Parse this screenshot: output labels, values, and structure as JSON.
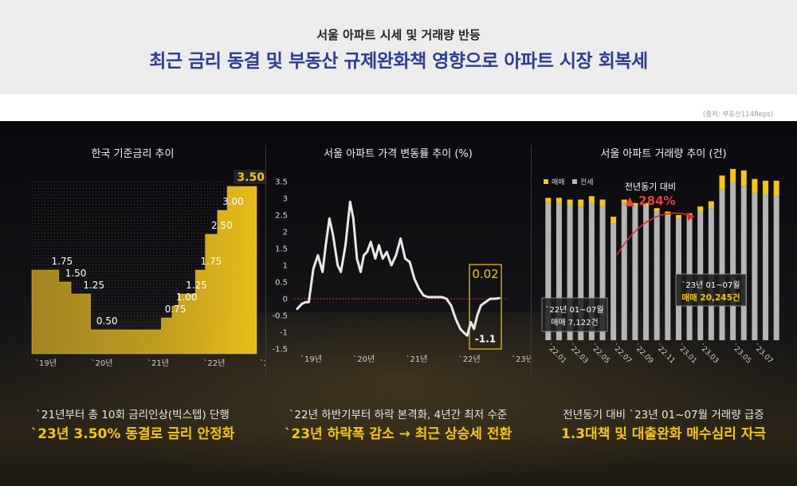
{
  "header": {
    "subtitle": "서울 아파트 시세 및 거래량 반등",
    "title": "최근 금리 동결 및 부동산 규제완화책 영향으로 아파트 시장 회복세"
  },
  "source": "(출처: 부동산114Reps)",
  "panels": [
    {
      "title": "한국 기준금리 추이",
      "caption": "`21년부터 총 10회 금리인상(빅스텝) 단행",
      "highlight": "`23년 3.50% 동결로 금리 안정화"
    },
    {
      "title": "서울 아파트 가격 변동률 추이 (%)",
      "caption": "`22년 하반기부터 하락 본격화, 4년간 최저 수준",
      "highlight": "`23년 하락폭 감소 → 최근 상승세 전환"
    },
    {
      "title": "서울 아파트 거래량 추이 (건)",
      "caption": "전년동기 대비 `23년 01~07월 거래량 급증",
      "highlight": "1.3대책 및 대출완화 매수심리 자극"
    }
  ],
  "colors": {
    "gold": "#f5c51b",
    "gray": "#b5b5b5",
    "title_blue": "#2c3d92"
  },
  "chart_data": [
    {
      "type": "area",
      "title": "한국 기준금리 추이",
      "xticks": [
        "`19년",
        "`20년",
        "`21년",
        "`22년",
        "`23년"
      ],
      "steps": [
        {
          "start": 0.0,
          "value": 1.75
        },
        {
          "start": 0.55,
          "value": 1.5
        },
        {
          "start": 0.8,
          "value": 1.25
        },
        {
          "start": 1.2,
          "value": 0.5
        },
        {
          "start": 1.42,
          "value": 0.5
        },
        {
          "start": 2.65,
          "value": 0.75
        },
        {
          "start": 2.87,
          "value": 1.0
        },
        {
          "start": 3.0,
          "value": 1.25
        },
        {
          "start": 3.35,
          "value": 1.75
        },
        {
          "start": 3.55,
          "value": 2.5
        },
        {
          "start": 3.8,
          "value": 3.0
        },
        {
          "start": 4.0,
          "value": 3.5
        },
        {
          "start": 4.6,
          "value": 3.5
        }
      ],
      "labels": [
        {
          "text": "1.75",
          "x": 0.4,
          "value": 1.75
        },
        {
          "text": "1.50",
          "x": 0.68,
          "value": 1.5
        },
        {
          "text": "1.25",
          "x": 1.05,
          "value": 1.25
        },
        {
          "text": "0.50",
          "x": 1.32,
          "value": 0.5
        },
        {
          "text": "0.75",
          "x": 2.72,
          "value": 0.75
        },
        {
          "text": "1.00",
          "x": 2.95,
          "value": 1.0
        },
        {
          "text": "1.25",
          "x": 3.15,
          "value": 1.25
        },
        {
          "text": "1.75",
          "x": 3.45,
          "value": 1.75
        },
        {
          "text": "2.50",
          "x": 3.67,
          "value": 2.5
        },
        {
          "text": "3.00",
          "x": 3.9,
          "value": 3.0
        },
        {
          "text": "3.50",
          "x": 4.2,
          "value": 3.5
        }
      ],
      "ylim": [
        0,
        3.6
      ]
    },
    {
      "type": "line",
      "title": "서울 아파트 가격 변동률 추이 (%)",
      "yticks": [
        "3.5",
        "3",
        "2.5",
        "2",
        "1.5",
        "1",
        "0.5",
        "0",
        "-0.5",
        "-1",
        "-1.5"
      ],
      "xticks": [
        "`19년",
        "`20년",
        "`21년",
        "`22년",
        "`23년"
      ],
      "ylim": [
        -1.5,
        3.5
      ],
      "x": [
        0,
        0.1,
        0.18,
        0.25,
        0.35,
        0.45,
        0.55,
        0.62,
        0.7,
        0.78,
        0.88,
        0.95,
        1.05,
        1.15,
        1.22,
        1.3,
        1.38,
        1.45,
        1.52,
        1.6,
        1.7,
        1.78,
        1.86,
        1.95,
        2.05,
        2.15,
        2.25,
        2.35,
        2.45,
        2.55,
        2.65,
        2.75,
        2.85,
        2.95,
        3.05,
        3.15,
        3.25,
        3.35,
        3.45,
        3.55,
        3.62,
        3.7,
        3.78,
        3.85,
        3.92,
        4.0,
        4.1,
        4.2,
        4.3,
        4.4
      ],
      "values": [
        -0.3,
        -0.15,
        -0.1,
        -0.1,
        0.9,
        1.3,
        0.8,
        1.6,
        2.4,
        1.9,
        1.0,
        0.8,
        1.6,
        2.9,
        2.4,
        1.2,
        0.8,
        1.3,
        1.4,
        1.7,
        1.2,
        1.6,
        1.2,
        1.4,
        1.0,
        1.3,
        1.8,
        1.2,
        1.1,
        0.6,
        0.3,
        0.1,
        0.05,
        0.05,
        0.05,
        0.05,
        0.0,
        -0.2,
        -0.6,
        -0.9,
        -1.0,
        -1.1,
        -0.7,
        -0.9,
        -0.5,
        -0.2,
        -0.1,
        0.0,
        0.0,
        0.02
      ],
      "annotations": [
        {
          "text": "0.02"
        },
        {
          "text": "-1.1"
        }
      ]
    },
    {
      "type": "bar",
      "title": "서울 아파트 거래량 추이 (건)",
      "legend": [
        "매매",
        "전세"
      ],
      "legend_position": "top-left",
      "xticks": [
        "`22.01",
        "`22.03",
        "`22.05",
        "`22.07",
        "`22.09",
        "`22.11",
        "`23.01",
        "`23.03",
        "`23.05",
        "`23.07"
      ],
      "series": [
        {
          "name": "전세",
          "values": [
            80,
            80,
            79,
            78,
            80,
            78,
            68,
            80,
            78,
            78,
            75,
            73,
            71,
            72,
            75,
            77,
            88,
            92,
            90,
            86,
            85,
            84
          ]
        },
        {
          "name": "매매",
          "values": [
            3,
            3,
            3,
            4,
            4,
            4,
            4,
            2,
            2,
            2,
            2,
            2,
            2,
            2,
            3,
            4,
            8,
            12,
            9,
            8,
            8,
            9
          ]
        }
      ],
      "ylim": [
        0,
        100
      ],
      "annotations": [
        {
          "text": "전년동기 대비"
        },
        {
          "text": "▲ 284%"
        },
        {
          "text": "`22년 01~07월"
        },
        {
          "text": "매매 7,122건"
        },
        {
          "text": "`23년 01~07월"
        },
        {
          "text": "매매 20,245건"
        }
      ]
    }
  ]
}
